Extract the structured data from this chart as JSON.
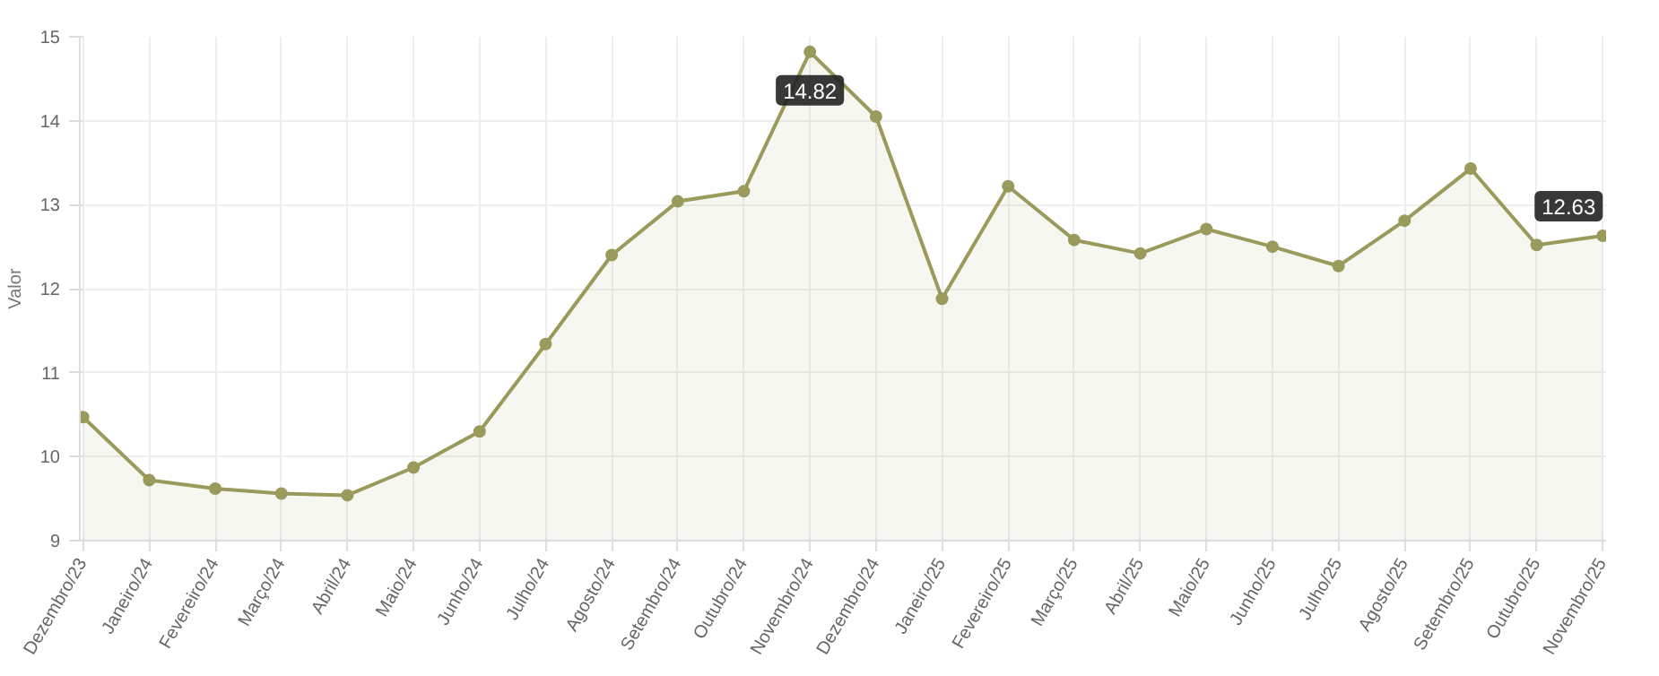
{
  "chart_data": {
    "type": "area",
    "ylabel": "Valor",
    "categories": [
      "Dezembro/23",
      "Janeiro/24",
      "Fevereiro/24",
      "Março/24",
      "Abril/24",
      "Maio/24",
      "Junho/24",
      "Julho/24",
      "Agosto/24",
      "Setembro/24",
      "Outubro/24",
      "Novembro/24",
      "Dezembro/24",
      "Janeiro/25",
      "Fevereiro/25",
      "Março/25",
      "Abril/25",
      "Maio/25",
      "Junho/25",
      "Julho/25",
      "Agosto/25",
      "Setembro/25",
      "Outubro/25",
      "Novembro/25"
    ],
    "series": [
      {
        "color": "#9a9a5c",
        "values": [
          10.47,
          9.72,
          9.62,
          9.56,
          9.54,
          9.87,
          10.3,
          11.34,
          12.4,
          13.04,
          13.16,
          14.82,
          14.05,
          11.88,
          13.22,
          12.58,
          12.42,
          12.71,
          12.5,
          12.27,
          12.81,
          13.43,
          12.52,
          12.63
        ],
        "value_labels": [
          null,
          null,
          null,
          null,
          null,
          null,
          null,
          null,
          null,
          null,
          null,
          "14.82",
          null,
          null,
          null,
          null,
          null,
          null,
          null,
          null,
          null,
          null,
          null,
          "12.63"
        ]
      }
    ],
    "ylim": [
      9,
      15
    ],
    "yticks": [
      9,
      10,
      11,
      12,
      13,
      14,
      15
    ],
    "grid": true,
    "marker": "circle",
    "line_style": "solid"
  }
}
